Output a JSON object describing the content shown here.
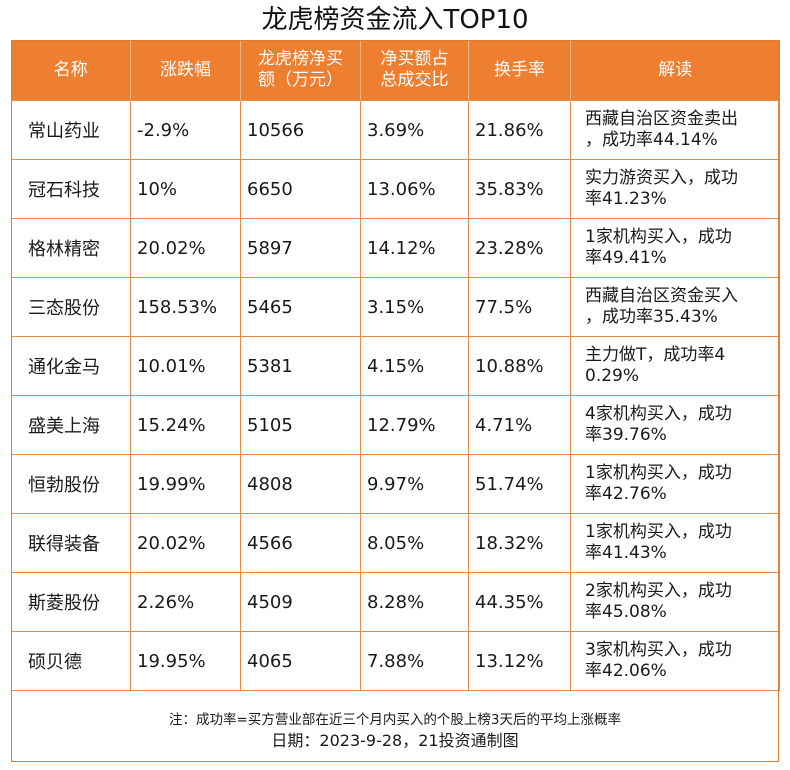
{
  "title": "龙虎榜资金流入TOP10",
  "headers": {
    "name": "名称",
    "change": "涨跌幅",
    "net_buy_line1": "龙虎榜净买",
    "net_buy_line2": "额（万元）",
    "ratio_line1": "净买额占",
    "ratio_line2": "总成交比",
    "turnover": "换手率",
    "comment": "解读"
  },
  "rows": [
    {
      "name": "常山药业",
      "change": "-2.9%",
      "net_buy": "10566",
      "ratio": "3.69%",
      "turnover": "21.86%",
      "comment_line1": "西藏自治区资金卖出",
      "comment_line2": "，成功率44.14%"
    },
    {
      "name": "冠石科技",
      "change": "10%",
      "net_buy": "6650",
      "ratio": "13.06%",
      "turnover": "35.83%",
      "comment_line1": "实力游资买入，成功",
      "comment_line2": "率41.23%"
    },
    {
      "name": "格林精密",
      "change": "20.02%",
      "net_buy": "5897",
      "ratio": "14.12%",
      "turnover": "23.28%",
      "comment_line1": "1家机构买入，成功",
      "comment_line2": "率49.41%"
    },
    {
      "name": "三态股份",
      "change": "158.53%",
      "net_buy": "5465",
      "ratio": "3.15%",
      "turnover": "77.5%",
      "comment_line1": "西藏自治区资金买入",
      "comment_line2": "，成功率35.43%"
    },
    {
      "name": "通化金马",
      "change": "10.01%",
      "net_buy": "5381",
      "ratio": "4.15%",
      "turnover": "10.88%",
      "comment_line1": "主力做T，成功率4",
      "comment_line2": "0.29%"
    },
    {
      "name": "盛美上海",
      "change": "15.24%",
      "net_buy": "5105",
      "ratio": "12.79%",
      "turnover": "4.71%",
      "comment_line1": "4家机构买入，成功",
      "comment_line2": "率39.76%"
    },
    {
      "name": "恒勃股份",
      "change": "19.99%",
      "net_buy": "4808",
      "ratio": "9.97%",
      "turnover": "51.74%",
      "comment_line1": "1家机构买入，成功",
      "comment_line2": "率42.76%"
    },
    {
      "name": "联得装备",
      "change": "20.02%",
      "net_buy": "4566",
      "ratio": "8.05%",
      "turnover": "18.32%",
      "comment_line1": "1家机构买入，成功",
      "comment_line2": "率41.43%"
    },
    {
      "name": "斯菱股份",
      "change": "2.26%",
      "net_buy": "4509",
      "ratio": "8.28%",
      "turnover": "44.35%",
      "comment_line1": "2家机构买入，成功",
      "comment_line2": "率45.08%"
    },
    {
      "name": "硕贝德",
      "change": "19.95%",
      "net_buy": "4065",
      "ratio": "7.88%",
      "turnover": "13.12%",
      "comment_line1": "3家机构买入，成功",
      "comment_line2": "率42.06%"
    }
  ],
  "footer": {
    "note": "注：成功率=买方营业部在近三个月内买入的个股上榜3天后的平均上涨概率",
    "date_line": "日期：2023-9-28，21投资通制图"
  }
}
